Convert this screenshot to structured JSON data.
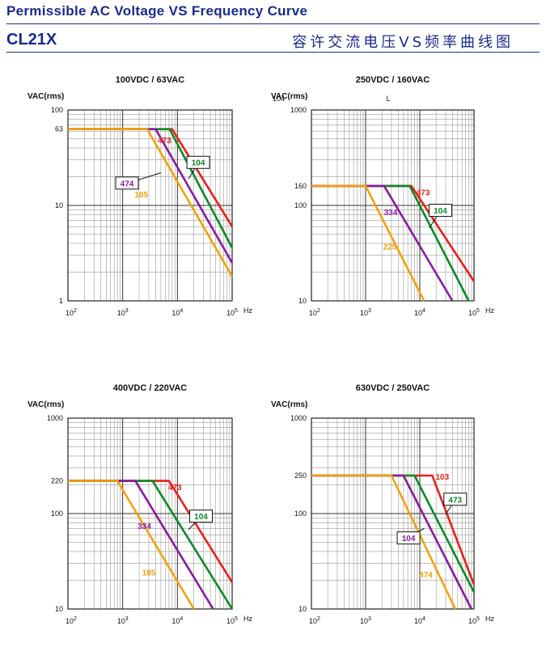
{
  "header": {
    "title": "Permissible AC Voltage VS Frequency Curve",
    "model": "CL21X",
    "title_cn": "容许交流电压VS频率曲线图"
  },
  "colors": {
    "red": "#e8201a",
    "green": "#0b8a25",
    "purple": "#8a1aa0",
    "orange": "#f2a20a",
    "header": "#1a2a8c"
  },
  "chart_data": [
    {
      "type": "line",
      "title": "100VDC / 63VAC",
      "ylabel": "VAC(rms)",
      "xlabel": "Hz",
      "x_scale": "log",
      "y_scale": "log",
      "xlim": [
        100,
        100000
      ],
      "ylim": [
        1,
        100
      ],
      "x_ticks": [
        "10^2",
        "10^3",
        "10^4",
        "10^5"
      ],
      "y_ticks": [
        {
          "v": 100,
          "t": "100"
        },
        {
          "v": 63,
          "t": "63"
        },
        {
          "v": 10,
          "t": "10"
        },
        {
          "v": 1,
          "t": "1"
        }
      ],
      "extra_text": [],
      "series": [
        {
          "name": "473",
          "color": "red",
          "points": [
            [
              100,
              63
            ],
            [
              8000,
              63
            ],
            [
              100000,
              6
            ]
          ],
          "label_at": [
            5800,
            48
          ],
          "boxed": false
        },
        {
          "name": "104",
          "color": "green",
          "points": [
            [
              100,
              63
            ],
            [
              7200,
              63
            ],
            [
              100000,
              3.6
            ]
          ],
          "label_at": [
            24000,
            28
          ],
          "boxed": true,
          "leader_to": [
            16000,
            19
          ]
        },
        {
          "name": "474",
          "color": "purple",
          "points": [
            [
              100,
              63
            ],
            [
              4000,
              63
            ],
            [
              100000,
              2.5
            ]
          ],
          "label_at": [
            1200,
            17
          ],
          "boxed": true,
          "leader_to": [
            5000,
            22
          ]
        },
        {
          "name": "105",
          "color": "orange",
          "points": [
            [
              100,
              63
            ],
            [
              2800,
              63
            ],
            [
              100000,
              1.8
            ]
          ],
          "label_at": [
            2200,
            13
          ],
          "boxed": false
        }
      ]
    },
    {
      "type": "line",
      "title": "250VDC / 160VAC",
      "ylabel": "VAC(rms)",
      "xlabel": "Hz",
      "x_scale": "log",
      "y_scale": "log",
      "xlim": [
        100,
        100000
      ],
      "ylim": [
        10,
        1000
      ],
      "x_ticks": [
        "10^2",
        "10^3",
        "10^4",
        "10^5"
      ],
      "y_ticks": [
        {
          "v": 1000,
          "t": "1000"
        },
        {
          "v": 160,
          "t": "160"
        },
        {
          "v": 100,
          "t": "100"
        },
        {
          "v": 10,
          "t": "10"
        }
      ],
      "extra_text": [
        "104",
        "L"
      ],
      "series": [
        {
          "name": "473",
          "color": "red",
          "points": [
            [
              100,
              160
            ],
            [
              7000,
              160
            ],
            [
              100000,
              16
            ]
          ],
          "label_at": [
            11500,
            137
          ],
          "boxed": false
        },
        {
          "name": "104",
          "color": "green",
          "points": [
            [
              100,
              160
            ],
            [
              6500,
              160
            ],
            [
              80000,
              10
            ]
          ],
          "label_at": [
            24000,
            88
          ],
          "boxed": true,
          "leader_to": [
            15000,
            58
          ]
        },
        {
          "name": "334",
          "color": "purple",
          "points": [
            [
              100,
              160
            ],
            [
              2200,
              160
            ],
            [
              40000,
              10
            ]
          ],
          "label_at": [
            2900,
            85
          ],
          "boxed": false
        },
        {
          "name": "225",
          "color": "orange",
          "points": [
            [
              100,
              160
            ],
            [
              1000,
              160
            ],
            [
              12000,
              10
            ]
          ],
          "label_at": [
            2800,
            37
          ],
          "boxed": false
        }
      ]
    },
    {
      "type": "line",
      "title": "400VDC / 220VAC",
      "ylabel": "VAC(rms)",
      "xlabel": "Hz",
      "x_scale": "log",
      "y_scale": "log",
      "xlim": [
        100,
        100000
      ],
      "ylim": [
        10,
        1000
      ],
      "x_ticks": [
        "10^2",
        "10^3",
        "10^4",
        "10^5"
      ],
      "y_ticks": [
        {
          "v": 1000,
          "t": "1000"
        },
        {
          "v": 220,
          "t": "220"
        },
        {
          "v": 100,
          "t": "100"
        },
        {
          "v": 10,
          "t": "10"
        }
      ],
      "extra_text": [],
      "series": [
        {
          "name": "473",
          "color": "red",
          "points": [
            [
              100,
              220
            ],
            [
              7000,
              220
            ],
            [
              100000,
              19
            ]
          ],
          "label_at": [
            9000,
            188
          ],
          "boxed": false
        },
        {
          "name": "104",
          "color": "green",
          "points": [
            [
              100,
              220
            ],
            [
              3500,
              220
            ],
            [
              100000,
              10
            ]
          ],
          "label_at": [
            27000,
            93
          ],
          "boxed": true,
          "leader_to": [
            16000,
            68
          ]
        },
        {
          "name": "334",
          "color": "purple",
          "points": [
            [
              100,
              220
            ],
            [
              1700,
              220
            ],
            [
              45000,
              10
            ]
          ],
          "label_at": [
            2500,
            74
          ],
          "boxed": false
        },
        {
          "name": "185",
          "color": "orange",
          "points": [
            [
              100,
              220
            ],
            [
              800,
              220
            ],
            [
              20000,
              10
            ]
          ],
          "label_at": [
            3000,
            24
          ],
          "boxed": false
        }
      ]
    },
    {
      "type": "line",
      "title": "630VDC / 250VAC",
      "ylabel": "VAC(rms)",
      "xlabel": "Hz",
      "x_scale": "log",
      "y_scale": "log",
      "xlim": [
        100,
        100000
      ],
      "ylim": [
        10,
        1000
      ],
      "x_ticks": [
        "10^2",
        "10^3",
        "10^4",
        "10^5"
      ],
      "y_ticks": [
        {
          "v": 1000,
          "t": "1000"
        },
        {
          "v": 250,
          "t": "250"
        },
        {
          "v": 100,
          "t": "100"
        },
        {
          "v": 10,
          "t": "10"
        }
      ],
      "extra_text": [],
      "series": [
        {
          "name": "103",
          "color": "red",
          "points": [
            [
              100,
              250
            ],
            [
              17000,
              250
            ],
            [
              100000,
              18
            ]
          ],
          "label_at": [
            26000,
            244
          ],
          "boxed": false
        },
        {
          "name": "473",
          "color": "green",
          "points": [
            [
              100,
              250
            ],
            [
              8000,
              250
            ],
            [
              100000,
              15
            ]
          ],
          "label_at": [
            45000,
            140
          ],
          "boxed": true,
          "leader_to": [
            30000,
            98
          ]
        },
        {
          "name": "104",
          "color": "purple",
          "points": [
            [
              100,
              250
            ],
            [
              5000,
              250
            ],
            [
              90000,
              10
            ]
          ],
          "label_at": [
            6200,
            55
          ],
          "boxed": true,
          "leader_to": [
            12000,
            70
          ]
        },
        {
          "name": "474",
          "color": "orange",
          "points": [
            [
              100,
              250
            ],
            [
              3000,
              250
            ],
            [
              45000,
              10
            ]
          ],
          "label_at": [
            13000,
            23
          ],
          "boxed": false
        }
      ]
    }
  ]
}
